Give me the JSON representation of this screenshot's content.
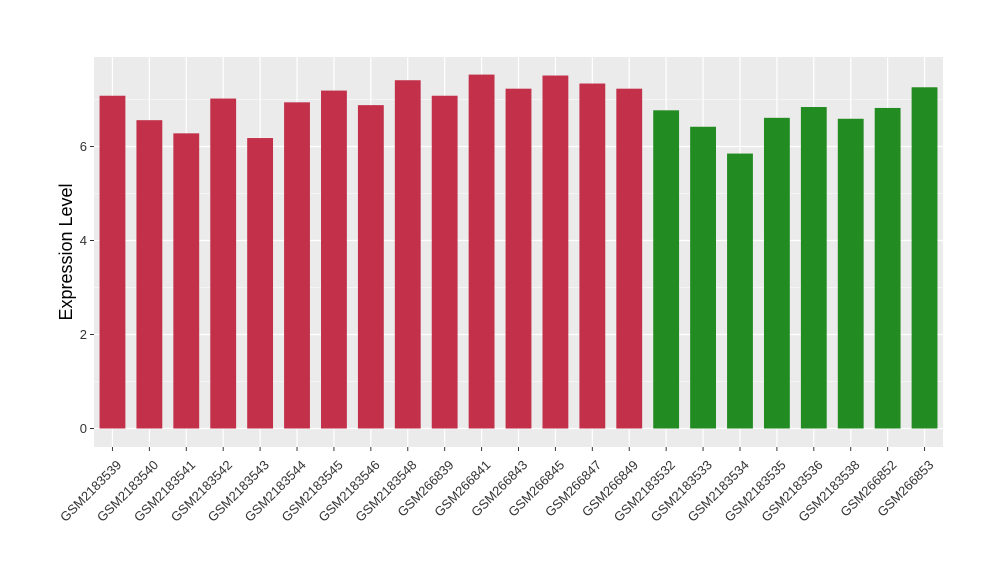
{
  "chart_data": {
    "type": "bar",
    "title": "",
    "xlabel": "",
    "ylabel": "Expression Level",
    "ylim": [
      0,
      7.9
    ],
    "yticks": [
      0,
      2,
      4,
      6
    ],
    "grid": true,
    "legend": "none",
    "panel_background": "#ebebeb",
    "grid_color": "#ffffff",
    "groups": [
      {
        "color": "#c2304a"
      },
      {
        "color": "#228b22"
      }
    ],
    "categories": [
      "GSM2183539",
      "GSM2183540",
      "GSM2183541",
      "GSM2183542",
      "GSM2183543",
      "GSM2183544",
      "GSM2183545",
      "GSM2183546",
      "GSM2183548",
      "GSM266839",
      "GSM266841",
      "GSM266843",
      "GSM266845",
      "GSM266847",
      "GSM266849",
      "GSM2183532",
      "GSM2183533",
      "GSM2183534",
      "GSM2183535",
      "GSM2183536",
      "GSM2183538",
      "GSM266852",
      "GSM266853"
    ],
    "values": [
      7.08,
      6.56,
      6.28,
      7.02,
      6.18,
      6.94,
      7.19,
      6.88,
      7.41,
      7.08,
      7.53,
      7.23,
      7.51,
      7.34,
      7.23,
      6.77,
      6.42,
      5.85,
      6.61,
      6.84,
      6.59,
      6.82,
      7.26
    ],
    "group_index": [
      0,
      0,
      0,
      0,
      0,
      0,
      0,
      0,
      0,
      0,
      0,
      0,
      0,
      0,
      0,
      1,
      1,
      1,
      1,
      1,
      1,
      1,
      1
    ]
  }
}
